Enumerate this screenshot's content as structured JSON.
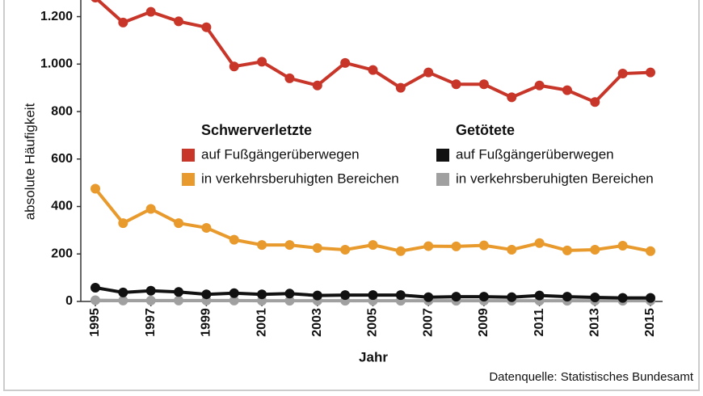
{
  "chart_data": {
    "type": "line",
    "ylabel": "absolute Häufigkeit",
    "xlabel": "Jahr",
    "source": "Datenquelle: Statistisches Bundesamt",
    "x": [
      1995,
      1996,
      1997,
      1998,
      1999,
      2000,
      2001,
      2002,
      2003,
      2004,
      2005,
      2006,
      2007,
      2008,
      2009,
      2010,
      2011,
      2012,
      2013,
      2014,
      2015
    ],
    "xlim": [
      1995,
      2015
    ],
    "xticks": [
      1995,
      1997,
      1999,
      2001,
      2003,
      2005,
      2007,
      2009,
      2011,
      2013,
      2015
    ],
    "ylim": [
      0,
      1270
    ],
    "yticks": [
      0,
      200,
      400,
      600,
      800,
      {
        "value": 1000,
        "label": "1.000"
      },
      {
        "value": 1200,
        "label": "1.200"
      }
    ],
    "legend_groups": [
      "Schwerverletzte",
      "Getötete"
    ],
    "series": [
      {
        "name": "auf Fußgängerüberwegen",
        "group": 0,
        "color": "#c8362a",
        "values": [
          1280,
          1175,
          1220,
          1180,
          1155,
          990,
          1010,
          940,
          910,
          1005,
          975,
          900,
          965,
          915,
          915,
          860,
          910,
          890,
          840,
          960,
          965
        ]
      },
      {
        "name": "in verkehrsberuhigten Bereichen",
        "group": 0,
        "color": "#e89a2c",
        "values": [
          475,
          330,
          390,
          330,
          310,
          260,
          238,
          238,
          225,
          218,
          238,
          212,
          233,
          232,
          236,
          218,
          246,
          215,
          218,
          235,
          212
        ]
      },
      {
        "name": "auf Fußgängerüberwegen",
        "group": 1,
        "color": "#111111",
        "values": [
          58,
          38,
          45,
          40,
          30,
          35,
          30,
          33,
          25,
          27,
          27,
          27,
          18,
          20,
          20,
          18,
          25,
          20,
          17,
          15,
          15
        ]
      },
      {
        "name": "in verkehrsberuhigten Bereichen",
        "group": 1,
        "color": "#a0a0a0",
        "values": [
          5,
          4,
          4,
          4,
          4,
          4,
          3,
          3,
          3,
          3,
          3,
          3,
          3,
          3,
          3,
          3,
          3,
          3,
          3,
          3,
          3
        ]
      }
    ]
  }
}
